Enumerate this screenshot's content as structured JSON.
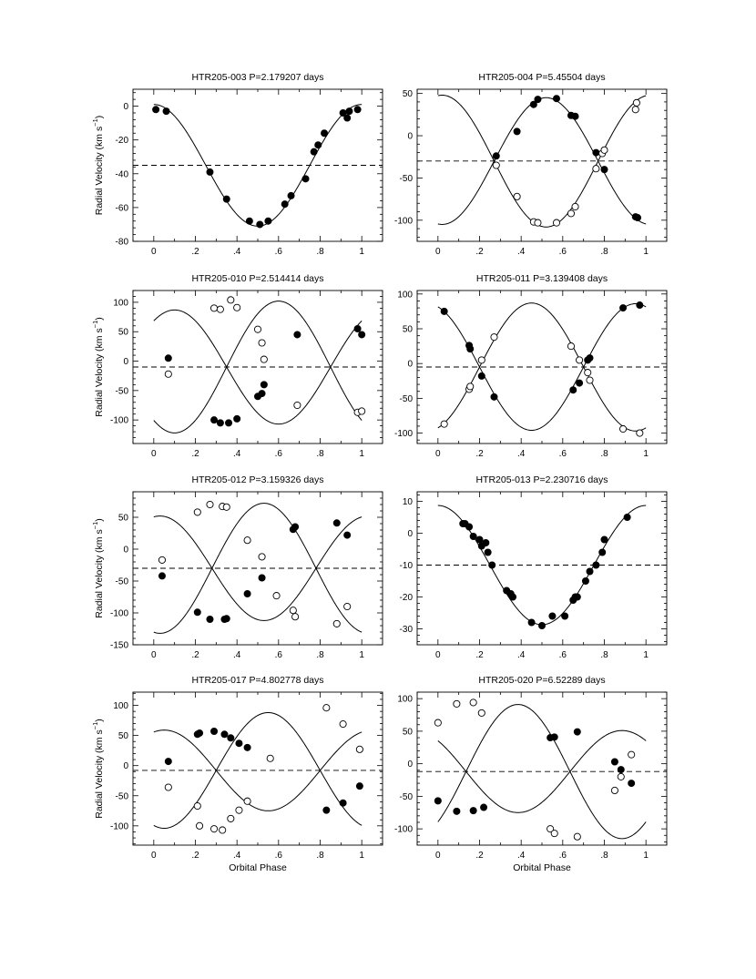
{
  "figure": {
    "ylabel": "Radial Velocity  (km s",
    "ylabel_sup": "−1",
    "ylabel_close": ")",
    "xlabel": "Orbital Phase"
  },
  "chart_data": [
    {
      "type": "scatter",
      "title": "HTR205-003   P=2.179207 days",
      "xlim": [
        -0.1,
        1.1
      ],
      "ylim": [
        -80,
        10
      ],
      "xticks": [
        "0",
        ".2",
        ".4",
        ".6",
        ".8",
        "1"
      ],
      "yticks": [
        0,
        -20,
        -40,
        -60,
        -80
      ],
      "systemic_velocity": -35,
      "curves": [
        {
          "K": 36,
          "phi0": 0.5,
          "sign": -1
        }
      ],
      "series": [
        {
          "marker": "filled",
          "x": [
            0.01,
            0.06,
            0.27,
            0.35,
            0.46,
            0.51,
            0.55,
            0.63,
            0.66,
            0.73,
            0.77,
            0.79,
            0.82,
            0.91,
            0.93,
            0.94,
            0.98
          ],
          "y": [
            -2,
            -3,
            -39,
            -55,
            -68,
            -70,
            -68,
            -58,
            -53,
            -43,
            -27,
            -23,
            -16,
            -4,
            -7,
            -3,
            -2
          ]
        }
      ]
    },
    {
      "type": "scatter",
      "title": "HTR205-004   P=5.45504 days",
      "xlim": [
        -0.1,
        1.1
      ],
      "ylim": [
        -125,
        55
      ],
      "xticks": [
        "0",
        ".2",
        ".4",
        ".6",
        ".8",
        "1"
      ],
      "yticks": [
        50,
        0,
        -50,
        -100
      ],
      "systemic_velocity": -30,
      "curves": [
        {
          "K": 75,
          "phi0": 0.52,
          "sign": 1
        },
        {
          "K": 78,
          "phi0": 0.52,
          "sign": -1
        }
      ],
      "series": [
        {
          "marker": "filled",
          "x": [
            0.28,
            0.38,
            0.46,
            0.48,
            0.57,
            0.64,
            0.66,
            0.76,
            0.8,
            0.95,
            0.96
          ],
          "y": [
            -24,
            5,
            37,
            43,
            44,
            24,
            23,
            -20,
            -40,
            -96,
            -97
          ]
        },
        {
          "marker": "open",
          "x": [
            0.28,
            0.38,
            0.46,
            0.48,
            0.57,
            0.64,
            0.66,
            0.76,
            0.79,
            0.8,
            0.95,
            0.955
          ],
          "y": [
            -35,
            -72,
            -102,
            -103,
            -103,
            -92,
            -84,
            -39,
            -21,
            -17,
            31,
            39
          ]
        }
      ]
    },
    {
      "type": "scatter",
      "title": "HTR205-010   P=2.514414 days",
      "xlim": [
        -0.1,
        1.1
      ],
      "ylim": [
        -140,
        120
      ],
      "xticks": [
        "0",
        ".2",
        ".4",
        ".6",
        ".8",
        "1"
      ],
      "yticks": [
        100,
        50,
        0,
        -50,
        -100
      ],
      "systemic_velocity": -10,
      "curves": [
        {
          "K": 97,
          "phi0": 0.6,
          "sign": -1
        },
        {
          "K": 112,
          "phi0": 0.6,
          "sign": 1
        }
      ],
      "series": [
        {
          "marker": "filled",
          "x": [
            0.07,
            0.29,
            0.32,
            0.36,
            0.4,
            0.5,
            0.52,
            0.53,
            0.69,
            0.98,
            1.0
          ],
          "y": [
            5,
            -100,
            -105,
            -105,
            -98,
            -60,
            -55,
            -40,
            45,
            55,
            45
          ]
        },
        {
          "marker": "open",
          "x": [
            0.07,
            0.29,
            0.32,
            0.37,
            0.4,
            0.5,
            0.52,
            0.53,
            0.69,
            0.98,
            1.0
          ],
          "y": [
            -22,
            90,
            88,
            104,
            91,
            54,
            31,
            3,
            -75,
            -87,
            -85
          ]
        }
      ]
    },
    {
      "type": "scatter",
      "title": "HTR205-011   P=3.139408 days",
      "xlim": [
        -0.1,
        1.1
      ],
      "ylim": [
        -115,
        105
      ],
      "xticks": [
        "0",
        ".2",
        ".4",
        ".6",
        ".8",
        "1"
      ],
      "yticks": [
        100,
        50,
        0,
        -50,
        -100
      ],
      "systemic_velocity": -5,
      "curves": [
        {
          "K": 92,
          "phi0": 0.45,
          "sign": 1
        },
        {
          "K": 91,
          "phi0": 0.45,
          "sign": -1
        }
      ],
      "series": [
        {
          "marker": "filled",
          "x": [
            0.03,
            0.15,
            0.155,
            0.21,
            0.27,
            0.65,
            0.68,
            0.72,
            0.73,
            0.89,
            0.97
          ],
          "y": [
            75,
            26,
            21,
            -18,
            -48,
            -38,
            -28,
            5,
            8,
            80,
            84
          ]
        },
        {
          "marker": "open",
          "x": [
            0.03,
            0.15,
            0.155,
            0.21,
            0.27,
            0.64,
            0.68,
            0.72,
            0.73,
            0.89,
            0.97
          ],
          "y": [
            -87,
            -37,
            -33,
            5,
            38,
            25,
            5,
            -13,
            -24,
            -94,
            -100
          ]
        }
      ]
    },
    {
      "type": "scatter",
      "title": "HTR205-012   P=3.159326 days",
      "xlim": [
        -0.1,
        1.1
      ],
      "ylim": [
        -150,
        90
      ],
      "xticks": [
        "0",
        ".2",
        ".4",
        ".6",
        ".8",
        "1"
      ],
      "yticks": [
        50,
        0,
        -50,
        -100,
        -150
      ],
      "systemic_velocity": -30,
      "curves": [
        {
          "K": 82,
          "phi0": 0.53,
          "sign": -1
        },
        {
          "K": 102,
          "phi0": 0.53,
          "sign": 1
        }
      ],
      "series": [
        {
          "marker": "filled",
          "x": [
            0.04,
            0.21,
            0.27,
            0.34,
            0.35,
            0.45,
            0.52,
            0.67,
            0.68,
            0.88,
            0.93
          ],
          "y": [
            -42,
            -99,
            -110,
            -110,
            -109,
            -70,
            -45,
            31,
            35,
            41,
            22
          ]
        },
        {
          "marker": "open",
          "x": [
            0.04,
            0.21,
            0.27,
            0.33,
            0.35,
            0.45,
            0.52,
            0.59,
            0.67,
            0.68,
            0.88,
            0.93
          ],
          "y": [
            -17,
            58,
            70,
            67,
            66,
            14,
            -12,
            -73,
            -96,
            -106,
            -117,
            -90
          ]
        }
      ]
    },
    {
      "type": "scatter",
      "title": "HTR205-013   P=2.230716 days",
      "xlim": [
        -0.1,
        1.1
      ],
      "ylim": [
        -35,
        13
      ],
      "xticks": [
        "0",
        ".2",
        ".4",
        ".6",
        ".8",
        "1"
      ],
      "yticks": [
        10,
        0,
        -10,
        -20,
        -30
      ],
      "systemic_velocity": -10,
      "curves": [
        {
          "K": 18.7,
          "phi0": 0.5,
          "sign": -1
        }
      ],
      "series": [
        {
          "marker": "filled",
          "x": [
            0.12,
            0.13,
            0.15,
            0.17,
            0.2,
            0.21,
            0.23,
            0.24,
            0.26,
            0.33,
            0.35,
            0.36,
            0.45,
            0.5,
            0.55,
            0.61,
            0.65,
            0.66,
            0.67,
            0.71,
            0.73,
            0.76,
            0.79,
            0.8,
            0.91
          ],
          "y": [
            3,
            3,
            2,
            -1,
            -2,
            -4,
            -3,
            -6,
            -10,
            -18,
            -19,
            -20,
            -28,
            -29,
            -26,
            -26,
            -21,
            -20,
            -20,
            -15,
            -12,
            -10,
            -6,
            -2,
            5
          ]
        }
      ]
    },
    {
      "type": "scatter",
      "title": "HTR205-017   P=4.802778 days",
      "xlim": [
        -0.1,
        1.1
      ],
      "ylim": [
        -132,
        122
      ],
      "xticks": [
        "0",
        ".2",
        ".4",
        ".6",
        ".8",
        "1"
      ],
      "yticks": [
        100,
        50,
        0,
        -50,
        -100
      ],
      "systemic_velocity": -8,
      "curves": [
        {
          "K": 67,
          "phi0": 0.55,
          "sign": -1
        },
        {
          "K": 96,
          "phi0": 0.55,
          "sign": 1
        }
      ],
      "series": [
        {
          "marker": "filled",
          "x": [
            0.07,
            0.21,
            0.22,
            0.29,
            0.34,
            0.37,
            0.41,
            0.45,
            0.83,
            0.91,
            0.99
          ],
          "y": [
            7,
            52,
            54,
            57,
            52,
            46,
            37,
            30,
            -74,
            -62,
            -34
          ]
        },
        {
          "marker": "open",
          "x": [
            0.07,
            0.21,
            0.22,
            0.29,
            0.33,
            0.37,
            0.41,
            0.45,
            0.56,
            0.83,
            0.91,
            0.99
          ],
          "y": [
            -36,
            -67,
            -100,
            -105,
            -107,
            -88,
            -74,
            -59,
            12,
            96,
            69,
            27
          ]
        }
      ]
    },
    {
      "type": "scatter",
      "title": "HTR205-020   P=6.52289 days",
      "xlim": [
        -0.1,
        1.1
      ],
      "ylim": [
        -125,
        110
      ],
      "xticks": [
        "0",
        ".2",
        ".4",
        ".6",
        ".8",
        "1"
      ],
      "yticks": [
        100,
        50,
        0,
        -50,
        -100
      ],
      "systemic_velocity": -12,
      "curves": [
        {
          "K": 63,
          "phi0": 0.385,
          "sign": -1
        },
        {
          "K": 103,
          "phi0": 0.385,
          "sign": 1
        }
      ],
      "series": [
        {
          "marker": "filled",
          "x": [
            0.0,
            0.09,
            0.17,
            0.22,
            0.54,
            0.56,
            0.67,
            0.85,
            0.88,
            0.93
          ],
          "y": [
            -57,
            -73,
            -72,
            -67,
            40,
            41,
            49,
            3,
            -9,
            -30
          ]
        },
        {
          "marker": "open",
          "x": [
            0.0,
            0.09,
            0.17,
            0.21,
            0.54,
            0.56,
            0.67,
            0.85,
            0.88,
            0.93
          ],
          "y": [
            63,
            92,
            94,
            78,
            -100,
            -107,
            -112,
            -41,
            -20,
            14
          ]
        }
      ]
    }
  ]
}
